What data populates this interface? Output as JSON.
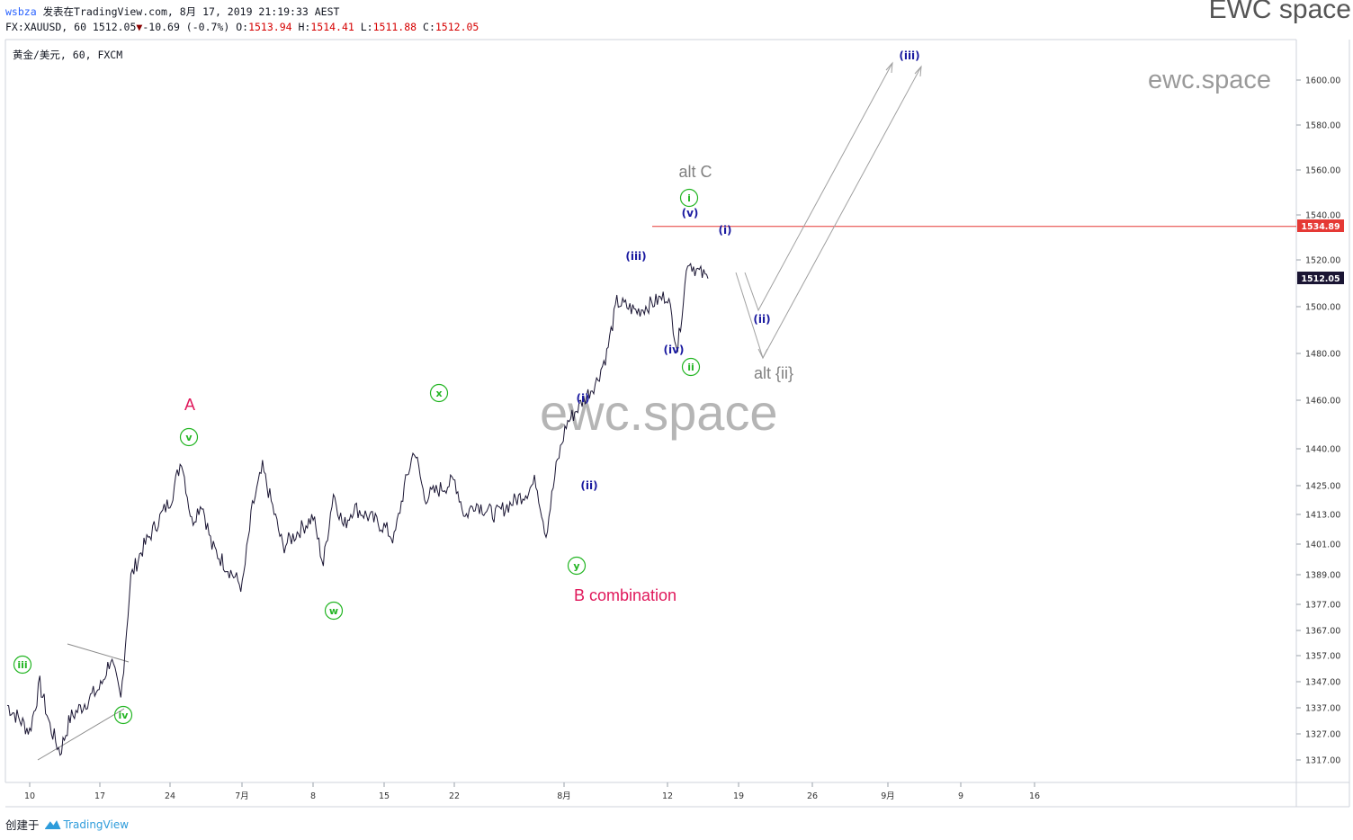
{
  "header": {
    "user": "wsbza",
    "published": "发表在TradingView.com, 8月 17, 2019 21:19:33 AEST",
    "symbol_info": "FX:XAUUSD, 60 1512.05",
    "change_arrow": "▼",
    "change": "-10.69 (-0.7%)",
    "o_label": "O:",
    "o": "1513.94",
    "h_label": "H:",
    "h": "1514.41",
    "l_label": "L:",
    "l": "1511.88",
    "c_label": "C:",
    "c": "1512.05"
  },
  "brand": "EWC space",
  "chart_data": {
    "type": "line",
    "title": "黄金/美元, 60, FXCM",
    "price_ticks": [
      "1600.00",
      "1580.00",
      "1560.00",
      "1540.00",
      "1520.00",
      "1500.00",
      "1480.00",
      "1460.00",
      "1440.00",
      "1425.00",
      "1413.00",
      "1401.00",
      "1389.00",
      "1377.00",
      "1367.00",
      "1357.00",
      "1347.00",
      "1337.00",
      "1327.00",
      "1317.00"
    ],
    "time_ticks": [
      "10",
      "17",
      "24",
      "7月",
      "8",
      "15",
      "22",
      "8月",
      "12",
      "19",
      "26",
      "9月",
      "9",
      "16"
    ],
    "price_marker_resistance": "1534.89",
    "price_marker_last": "1512.05",
    "resistance_level": 1534.89,
    "last_price": 1512.05,
    "series": [
      {
        "x": [
          "06-07",
          "06-10",
          "06-11",
          "06-12",
          "06-13",
          "06-14",
          "06-17",
          "06-18",
          "06-19",
          "06-20",
          "06-21",
          "06-24",
          "06-25",
          "06-26",
          "06-27",
          "06-28",
          "07-01",
          "07-02",
          "07-03",
          "07-05",
          "07-08",
          "07-09",
          "07-10",
          "07-11",
          "07-12",
          "07-15",
          "07-16",
          "07-17",
          "07-18",
          "07-19",
          "07-22",
          "07-23",
          "07-24",
          "07-25",
          "07-26",
          "07-29",
          "07-30",
          "07-31",
          "08-01",
          "08-02",
          "08-05",
          "08-06",
          "08-07",
          "08-08",
          "08-09",
          "08-12",
          "08-13",
          "08-14",
          "08-15",
          "08-16"
        ],
        "values": [
          1338,
          1328,
          1346,
          1330,
          1320,
          1333,
          1345,
          1356,
          1340,
          1388,
          1398,
          1420,
          1436,
          1410,
          1418,
          1400,
          1384,
          1416,
          1432,
          1400,
          1412,
          1393,
          1422,
          1408,
          1416,
          1408,
          1403,
          1424,
          1440,
          1420,
          1427,
          1412,
          1418,
          1415,
          1413,
          1422,
          1427,
          1405,
          1432,
          1450,
          1468,
          1480,
          1502,
          1500,
          1498,
          1505,
          1482,
          1520,
          1515,
          1512
        ]
      }
    ]
  },
  "waves": {
    "green_iii": "iii",
    "green_iv": "iv",
    "green_v": "v",
    "green_w": "w",
    "green_x": "x",
    "green_y": "y",
    "green_i": "i",
    "green_ii": "ii",
    "blue_i": "(i)",
    "blue_ii": "(ii)",
    "blue_iii": "(iii)",
    "blue_iv": "(iv)",
    "blue_v": "(v)",
    "blue_i2": "(i)",
    "blue_ii2": "(ii)",
    "blue_iii_target": "(iii)",
    "red_A": "A",
    "red_B": "B combination",
    "alt_C": "alt C",
    "alt_ii": "alt {ii}"
  },
  "watermark_big": "ewc.space",
  "watermark_small": "ewc.space",
  "colors": {
    "price": "#1a1533",
    "green": "#22b522",
    "blue": "#1a1aa0",
    "red": "#e0185b",
    "resistance": "#e53935",
    "gray": "#8a8a8a"
  },
  "footer": {
    "created": "创建于",
    "logo": "TradingView"
  }
}
